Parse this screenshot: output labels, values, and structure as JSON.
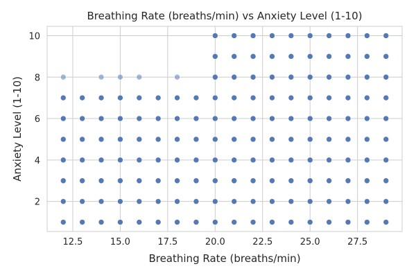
{
  "chart_data": {
    "type": "scatter",
    "title": "Breathing Rate (breaths/min) vs Anxiety Level (1-10)",
    "xlabel": "Breathing Rate (breaths/min)",
    "ylabel": "Anxiety Level (1-10)",
    "xlim": [
      11.15,
      29.85
    ],
    "ylim": [
      0.55,
      10.45
    ],
    "xticks": [
      12.5,
      15.0,
      17.5,
      20.0,
      22.5,
      25.0,
      27.5
    ],
    "xtick_labels": [
      "12.5",
      "15.0",
      "17.5",
      "20.0",
      "22.5",
      "25.0",
      "27.5"
    ],
    "yticks": [
      2,
      4,
      6,
      8,
      10
    ],
    "ytick_labels": [
      "2",
      "4",
      "6",
      "8",
      "10"
    ],
    "grid": true,
    "legend": "none",
    "colors": {
      "point": "#4c72b0",
      "grid": "#cccccc",
      "spine": "#cccccc"
    },
    "series": [
      {
        "points": [
          [
            12,
            1
          ],
          [
            12,
            2
          ],
          [
            12,
            3
          ],
          [
            12,
            4
          ],
          [
            12,
            5
          ],
          [
            12,
            6
          ],
          [
            12,
            7
          ],
          [
            12,
            8
          ],
          [
            13,
            1
          ],
          [
            13,
            2
          ],
          [
            13,
            3
          ],
          [
            13,
            4
          ],
          [
            13,
            5
          ],
          [
            13,
            6
          ],
          [
            13,
            7
          ],
          [
            14,
            1
          ],
          [
            14,
            2
          ],
          [
            14,
            3
          ],
          [
            14,
            4
          ],
          [
            14,
            5
          ],
          [
            14,
            6
          ],
          [
            14,
            7
          ],
          [
            14,
            8
          ],
          [
            15,
            1
          ],
          [
            15,
            2
          ],
          [
            15,
            3
          ],
          [
            15,
            4
          ],
          [
            15,
            5
          ],
          [
            15,
            6
          ],
          [
            15,
            7
          ],
          [
            15,
            8
          ],
          [
            16,
            1
          ],
          [
            16,
            2
          ],
          [
            16,
            3
          ],
          [
            16,
            4
          ],
          [
            16,
            5
          ],
          [
            16,
            6
          ],
          [
            16,
            7
          ],
          [
            16,
            8
          ],
          [
            17,
            1
          ],
          [
            17,
            2
          ],
          [
            17,
            3
          ],
          [
            17,
            4
          ],
          [
            17,
            5
          ],
          [
            17,
            6
          ],
          [
            17,
            7
          ],
          [
            18,
            1
          ],
          [
            18,
            2
          ],
          [
            18,
            3
          ],
          [
            18,
            4
          ],
          [
            18,
            5
          ],
          [
            18,
            6
          ],
          [
            18,
            7
          ],
          [
            18,
            8
          ],
          [
            19,
            1
          ],
          [
            19,
            2
          ],
          [
            19,
            3
          ],
          [
            19,
            4
          ],
          [
            19,
            5
          ],
          [
            19,
            6
          ],
          [
            19,
            7
          ],
          [
            20,
            1
          ],
          [
            20,
            2
          ],
          [
            20,
            3
          ],
          [
            20,
            4
          ],
          [
            20,
            5
          ],
          [
            20,
            6
          ],
          [
            20,
            7
          ],
          [
            20,
            8
          ],
          [
            20,
            9
          ],
          [
            20,
            10
          ],
          [
            21,
            1
          ],
          [
            21,
            2
          ],
          [
            21,
            3
          ],
          [
            21,
            4
          ],
          [
            21,
            5
          ],
          [
            21,
            6
          ],
          [
            21,
            7
          ],
          [
            21,
            8
          ],
          [
            21,
            9
          ],
          [
            21,
            10
          ],
          [
            22,
            1
          ],
          [
            22,
            2
          ],
          [
            22,
            3
          ],
          [
            22,
            4
          ],
          [
            22,
            5
          ],
          [
            22,
            6
          ],
          [
            22,
            7
          ],
          [
            22,
            8
          ],
          [
            22,
            9
          ],
          [
            22,
            10
          ],
          [
            23,
            1
          ],
          [
            23,
            2
          ],
          [
            23,
            3
          ],
          [
            23,
            4
          ],
          [
            23,
            5
          ],
          [
            23,
            6
          ],
          [
            23,
            7
          ],
          [
            23,
            8
          ],
          [
            23,
            9
          ],
          [
            23,
            10
          ],
          [
            24,
            1
          ],
          [
            24,
            2
          ],
          [
            24,
            3
          ],
          [
            24,
            4
          ],
          [
            24,
            5
          ],
          [
            24,
            6
          ],
          [
            24,
            7
          ],
          [
            24,
            8
          ],
          [
            24,
            9
          ],
          [
            24,
            10
          ],
          [
            25,
            1
          ],
          [
            25,
            2
          ],
          [
            25,
            3
          ],
          [
            25,
            4
          ],
          [
            25,
            5
          ],
          [
            25,
            6
          ],
          [
            25,
            7
          ],
          [
            25,
            8
          ],
          [
            25,
            9
          ],
          [
            25,
            10
          ],
          [
            26,
            1
          ],
          [
            26,
            2
          ],
          [
            26,
            3
          ],
          [
            26,
            4
          ],
          [
            26,
            5
          ],
          [
            26,
            6
          ],
          [
            26,
            7
          ],
          [
            26,
            8
          ],
          [
            26,
            9
          ],
          [
            26,
            10
          ],
          [
            27,
            1
          ],
          [
            27,
            2
          ],
          [
            27,
            3
          ],
          [
            27,
            4
          ],
          [
            27,
            5
          ],
          [
            27,
            6
          ],
          [
            27,
            7
          ],
          [
            27,
            8
          ],
          [
            27,
            9
          ],
          [
            27,
            10
          ],
          [
            28,
            1
          ],
          [
            28,
            2
          ],
          [
            28,
            3
          ],
          [
            28,
            4
          ],
          [
            28,
            5
          ],
          [
            28,
            6
          ],
          [
            28,
            7
          ],
          [
            28,
            8
          ],
          [
            28,
            9
          ],
          [
            28,
            10
          ],
          [
            29,
            1
          ],
          [
            29,
            2
          ],
          [
            29,
            3
          ],
          [
            29,
            4
          ],
          [
            29,
            5
          ],
          [
            29,
            6
          ],
          [
            29,
            7
          ],
          [
            29,
            8
          ],
          [
            29,
            9
          ],
          [
            29,
            10
          ]
        ],
        "faint_points": [
          [
            12,
            8
          ],
          [
            14,
            8
          ],
          [
            15,
            8
          ],
          [
            16,
            8
          ],
          [
            18,
            8
          ]
        ]
      }
    ]
  }
}
